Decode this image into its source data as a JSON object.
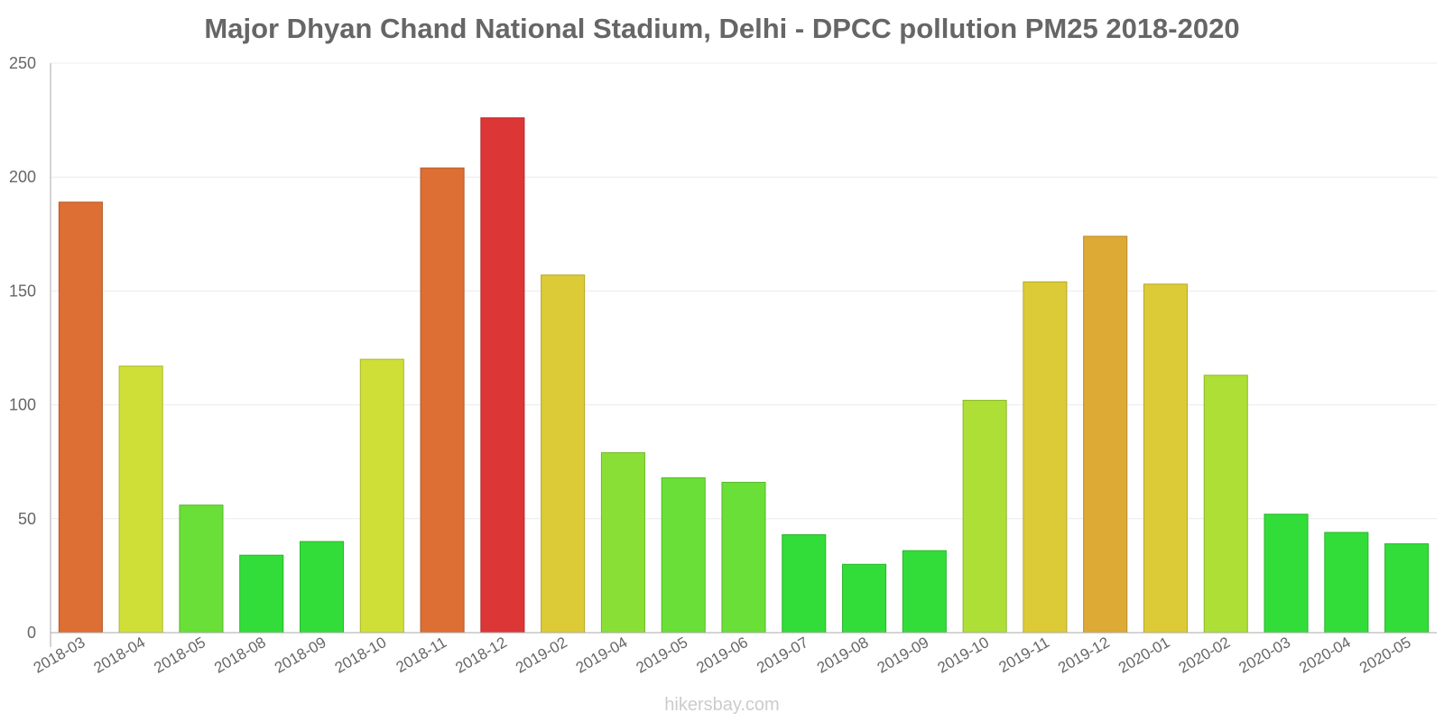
{
  "chart_data": {
    "type": "bar",
    "title": "Major Dhyan Chand National Stadium, Delhi - DPCC pollution PM25 2018-2020",
    "xlabel": "",
    "ylabel": "",
    "ylim": [
      0,
      250
    ],
    "yticks": [
      0,
      50,
      100,
      150,
      200,
      250
    ],
    "grid": true,
    "legend": "none",
    "categories": [
      "2018-03",
      "2018-04",
      "2018-05",
      "2018-08",
      "2018-09",
      "2018-10",
      "2018-11",
      "2018-12",
      "2019-02",
      "2019-04",
      "2019-05",
      "2019-06",
      "2019-07",
      "2019-08",
      "2019-09",
      "2019-10",
      "2019-11",
      "2019-12",
      "2020-01",
      "2020-02",
      "2020-03",
      "2020-04",
      "2020-05"
    ],
    "values": [
      189,
      117,
      56,
      34,
      40,
      120,
      204,
      226,
      157,
      79,
      68,
      66,
      43,
      30,
      36,
      102,
      154,
      174,
      153,
      113,
      52,
      44,
      39
    ],
    "colors": [
      "#dd6e34",
      "#cfdf37",
      "#6adf37",
      "#33dd39",
      "#33dd39",
      "#cfdf37",
      "#dd6e34",
      "#dd3637",
      "#dccb36",
      "#8adf37",
      "#6adf37",
      "#6adf37",
      "#33dd39",
      "#33dd39",
      "#33dd39",
      "#addf37",
      "#dccb36",
      "#ddaa36",
      "#dccb36",
      "#addf37",
      "#33dd39",
      "#33dd39",
      "#33dd39"
    ]
  },
  "watermark": "hikersbay.com"
}
